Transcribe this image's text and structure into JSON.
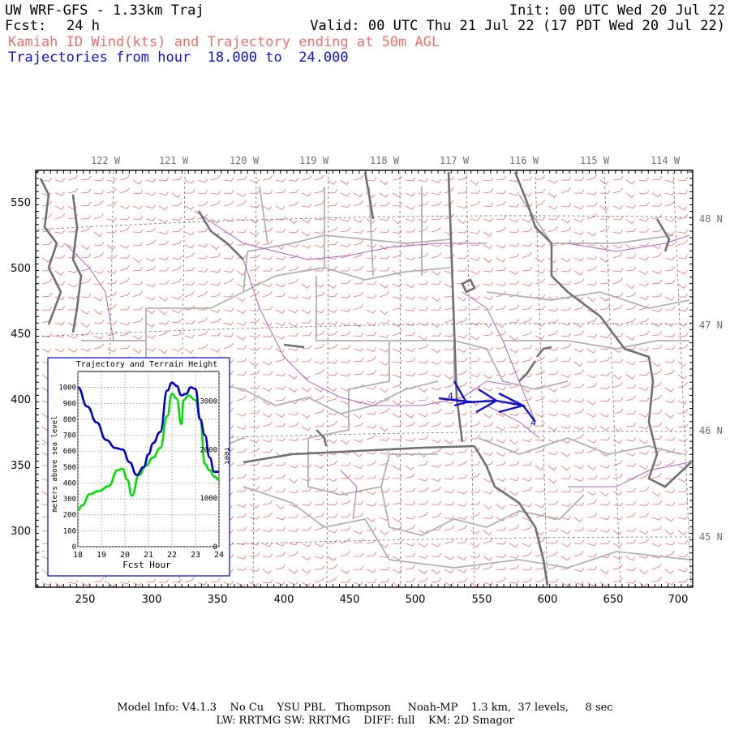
{
  "header": {
    "model": "UW WRF-GFS - 1.33km Traj",
    "init": "Init: 00 UTC Wed 20 Jul 22",
    "fcst_label": "Fcst:",
    "fcst_value": "24 h",
    "valid": "Valid: 00 UTC Thu 21 Jul 22 (17 PDT Wed 20 Jul 22)",
    "subtitle": "Kamiah ID Wind(kts) and Trajectory ending at 50m AGL",
    "trajectories": "Trajectories from hour  18.000 to  24.000"
  },
  "map": {
    "lon_labels": [
      "122 W",
      "121 W",
      "120 W",
      "119 W",
      "118 W",
      "117 W",
      "116 W",
      "115 W",
      "114 W"
    ],
    "lat_labels": [
      "48 N",
      "47 N",
      "46 N",
      "45 N"
    ],
    "x_ticks": [
      "250",
      "300",
      "350",
      "400",
      "450",
      "500",
      "550",
      "600",
      "650",
      "700"
    ],
    "y_ticks": [
      "550",
      "500",
      "450",
      "400",
      "350",
      "300"
    ],
    "trajectory_markers": [
      "4",
      "4"
    ],
    "colors": {
      "wind_barbs": "#ef6f6f",
      "counties": "#b0b0b0",
      "state_lines": "#707070",
      "rivers": "#b060c0",
      "trajectory": "#1010d0"
    }
  },
  "inset": {
    "title": "Trajectory and Terrain Height",
    "ylabel_left": "meters above sea level",
    "ylabel_right": "feet",
    "xlabel": "Fcst Hour",
    "left_ticks": [
      "1000",
      "900",
      "800",
      "700",
      "600",
      "500",
      "400",
      "300",
      "200",
      "100",
      "0"
    ],
    "right_ticks": [
      "3000",
      "2000",
      "1000",
      "0"
    ],
    "x_ticks": [
      "18",
      "19",
      "20",
      "21",
      "22",
      "23",
      "24"
    ]
  },
  "chart_data": {
    "type": "line",
    "title": "Trajectory and Terrain Height",
    "xlabel": "Fcst Hour",
    "ylabel": "meters above sea level",
    "xlim": [
      18,
      24
    ],
    "ylim": [
      0,
      1100
    ],
    "series": [
      {
        "name": "",
        "color": "#0000cc",
        "x": [
          18.0,
          18.4,
          18.8,
          19.2,
          19.6,
          19.9,
          20.2,
          20.5,
          20.8,
          21.0,
          21.2,
          21.5,
          21.8,
          22.0,
          22.2,
          22.4,
          22.6,
          22.8,
          23.0,
          23.2,
          23.4,
          23.6,
          23.8,
          24.0
        ],
        "values": [
          1000,
          880,
          780,
          670,
          620,
          610,
          530,
          450,
          500,
          580,
          650,
          720,
          980,
          1030,
          1010,
          950,
          960,
          1000,
          990,
          800,
          700,
          560,
          470,
          470
        ]
      },
      {
        "name": "",
        "color": "#00e000",
        "x": [
          18.0,
          18.2,
          18.5,
          18.9,
          19.3,
          19.7,
          19.9,
          20.1,
          20.3,
          20.6,
          20.9,
          21.2,
          21.5,
          21.8,
          22.0,
          22.2,
          22.4,
          22.5,
          22.7,
          23.0,
          23.2,
          23.4,
          23.6,
          23.8,
          24.0
        ],
        "values": [
          230,
          260,
          330,
          350,
          380,
          480,
          490,
          420,
          320,
          450,
          510,
          560,
          620,
          820,
          960,
          930,
          770,
          920,
          950,
          920,
          800,
          520,
          480,
          440,
          420
        ]
      }
    ]
  },
  "footer": {
    "line1": "Model Info: V4.1.3    No Cu    YSU PBL   Thompson     Noah-MP    1.3 km,  37 levels,     8 sec",
    "line2": "LW: RRTMG SW: RRTMG    DIFF: full    KM: 2D Smagor"
  }
}
